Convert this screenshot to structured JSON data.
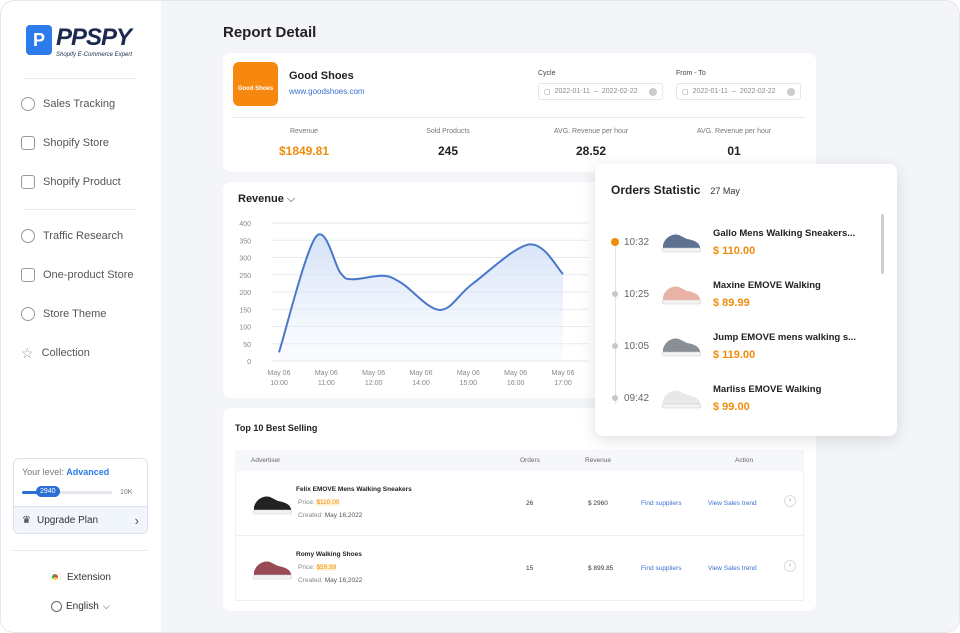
{
  "sidebar": {
    "logo": {
      "name": "PPSPY",
      "tagline": "Shopify E-Commerce Expert"
    },
    "items": [
      {
        "label": "Sales Tracking",
        "icon": "target-icon"
      },
      {
        "label": "Shopify Store",
        "icon": "store-icon"
      },
      {
        "label": "Shopify Product",
        "icon": "box-icon"
      },
      {
        "label": "Traffic Research",
        "icon": "pie-chart-icon"
      },
      {
        "label": "One-product Store",
        "icon": "house-icon"
      },
      {
        "label": "Store Theme",
        "icon": "palette-icon"
      },
      {
        "label": "Collection",
        "icon": "star-icon"
      }
    ],
    "level": {
      "label": "Your level:",
      "value": "Advanced",
      "progress": 2940,
      "max_label": "10K",
      "progress_label": "2940",
      "max": 10000
    },
    "upgrade_label": "Upgrade Plan",
    "extension_label": "Extension",
    "language_label": "English"
  },
  "header": {
    "title": "Report Detail"
  },
  "store": {
    "logo_text": "Good Shoes",
    "name": "Good Shoes",
    "url": "www.goodshoes.com",
    "accent": "#f7880f",
    "cycle": {
      "label": "Cycle",
      "start": "2022-01-11",
      "end": "2022-02-22"
    },
    "range": {
      "label": "From - To",
      "start": "2022-01-11",
      "end": "2022-02-22"
    },
    "stats": [
      {
        "label": "Revenue",
        "value": "$1849.81"
      },
      {
        "label": "Sold Products",
        "value": "245"
      },
      {
        "label": "AVG. Revenue per hour",
        "value": "28.52"
      },
      {
        "label": "AVG. Revenue per hour",
        "value": "01"
      }
    ]
  },
  "chart_data": {
    "type": "area",
    "title": "Revenue",
    "grid": true,
    "categories": [
      "May 06\n10:00",
      "May 06\n11:00",
      "May 06\n12:00",
      "May 06\n14:00",
      "May 06\n15:00",
      "May 06\n16:00",
      "May 06\n17:00"
    ],
    "yticks": [
      0,
      50,
      100,
      150,
      200,
      250,
      300,
      350,
      400
    ],
    "ylim": [
      0,
      400
    ],
    "points": [
      [
        0,
        25
      ],
      [
        0.78,
        360
      ],
      [
        1.3,
        255
      ],
      [
        1.55,
        237
      ],
      [
        2.2,
        247
      ],
      [
        2.6,
        225
      ],
      [
        3.4,
        148
      ],
      [
        4.1,
        225
      ],
      [
        5.3,
        338
      ],
      [
        6,
        252
      ]
    ],
    "color": "#4a78c9"
  },
  "orders": {
    "title": "Orders Statistic",
    "date": "27 May",
    "items": [
      {
        "time": "10:32",
        "name": "Gallo Mens Walking Sneakers...",
        "price": "$ 110.00",
        "shoe_color": "#5d7290",
        "active": true
      },
      {
        "time": "10:25",
        "name": "Maxine EMOVE Walking",
        "price": "$ 89.99",
        "shoe_color": "#e8b3a6",
        "active": false
      },
      {
        "time": "10:05",
        "name": "Jump EMOVE mens walking s...",
        "price": "$ 119.00",
        "shoe_color": "#8a8f96",
        "active": false
      },
      {
        "time": "09:42",
        "name": "Marliss EMOVE Walking",
        "price": "$ 99.00",
        "shoe_color": "#e6e8ea",
        "active": false
      }
    ]
  },
  "best_selling": {
    "title": "Top 10 Best Selling",
    "columns": [
      "Advertiser",
      "Orders",
      "Revenue",
      "Action"
    ],
    "rows": [
      {
        "name": "Felix EMOVE Mens Walking Sneakers",
        "price_label": "Price:",
        "price": "$110.00",
        "created_label": "Created:",
        "created": "May 16,2022",
        "orders": "26",
        "revenue": "$ 2960",
        "find": "Find suppliers",
        "trend": "View Sales trend",
        "shoe_color": "#222"
      },
      {
        "name": "Romy Walking Shoes",
        "price_label": "Price:",
        "price": "$59.99",
        "created_label": "Created:",
        "created": "May 16,2022",
        "orders": "15",
        "revenue": "$ 899.85",
        "find": "Find suppliers",
        "trend": "View Sales trend",
        "shoe_color": "#9a4a55"
      }
    ]
  }
}
